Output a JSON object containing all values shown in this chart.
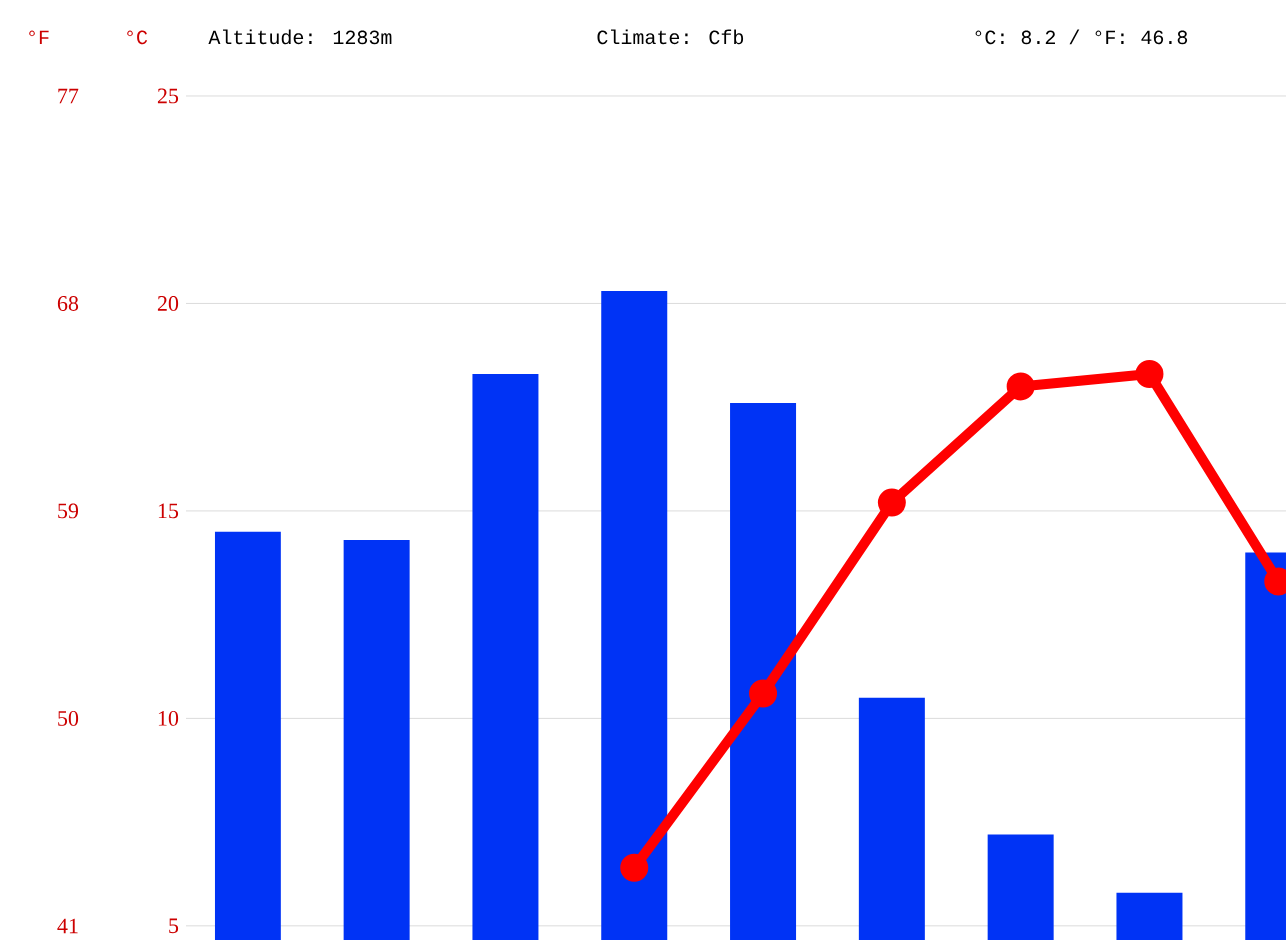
{
  "chart_data": {
    "type": "bar",
    "ylabel": "°C",
    "y2label": "°F",
    "annotations": [
      "Altitude: 1283m",
      "Climate: Cfb",
      "°C: 8.2 / °F: 46.8"
    ],
    "categories": [
      null,
      null,
      null,
      null,
      null,
      null,
      null,
      null,
      null
    ],
    "series": [
      {
        "color": "#0033f5",
        "values": [
          14.5,
          14.3,
          18.3,
          20.3,
          17.6,
          10.5,
          7.2,
          5.8,
          14.0
        ]
      },
      {
        "type": "line",
        "color": "#ff0000",
        "values": [
          null,
          null,
          null,
          6.4,
          10.6,
          15.2,
          18.0,
          18.3,
          13.3
        ]
      }
    ],
    "ylim": [
      4.66,
      25
    ],
    "yticks": [
      5,
      10,
      15,
      20,
      25
    ],
    "y2lim": [
      40.39,
      77
    ],
    "y2ticks": [
      41,
      50,
      59,
      68,
      77
    ],
    "grid": "y",
    "marker": "circle"
  }
}
